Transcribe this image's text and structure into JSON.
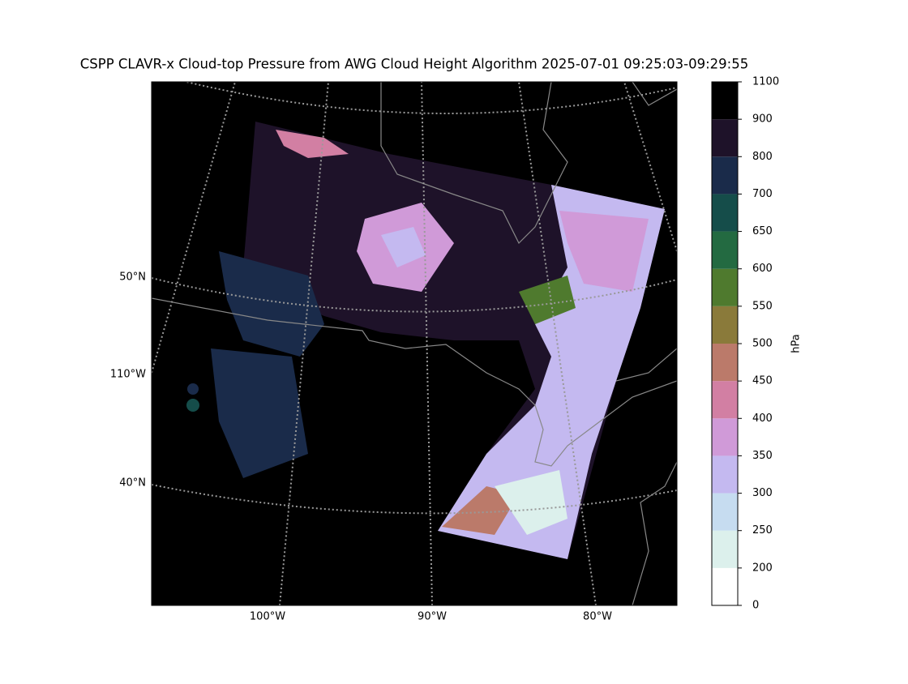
{
  "title": "CSPP CLAVR-x Cloud-top Pressure from AWG Cloud Height Algorithm 2025-07-01 09:25:03-09:29:55",
  "map": {
    "left_labels": [
      "50°N",
      "110°W",
      "40°N"
    ],
    "bottom_labels": [
      "100°W",
      "90°W",
      "80°W"
    ]
  },
  "colorbar": {
    "label": "hPa",
    "bounds": [
      0,
      200,
      250,
      300,
      350,
      400,
      450,
      500,
      550,
      600,
      650,
      700,
      800,
      900,
      1100
    ],
    "colors": [
      "#ffffff",
      "#dcf0ec",
      "#c6dcf0",
      "#c4b9f0",
      "#d09ad8",
      "#d27fa3",
      "#bb7a6a",
      "#8a7a3a",
      "#4f7a2e",
      "#236a41",
      "#154d4a",
      "#1a2b4a",
      "#1e1229",
      "#000000"
    ]
  }
}
